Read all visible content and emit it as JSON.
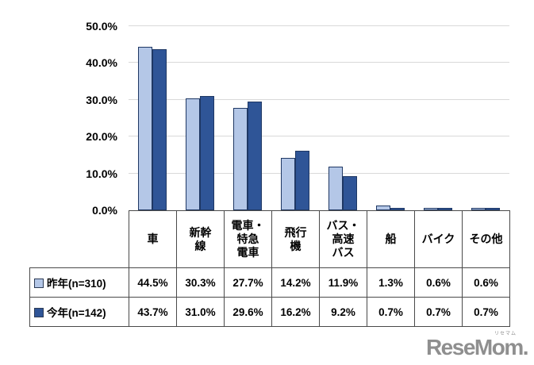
{
  "chart_data": {
    "type": "bar",
    "title": "",
    "xlabel": "",
    "ylabel": "",
    "ylim": [
      0,
      50
    ],
    "ytick_step": 10,
    "ytick_labels": [
      "0.0%",
      "10.0%",
      "20.0%",
      "30.0%",
      "40.0%",
      "50.0%"
    ],
    "grid": true,
    "legend_position": "table-left",
    "gridline_color": "#d9d9d9",
    "bar_border_color": "#1F3864",
    "categories": [
      "車",
      "新幹線",
      "電車・特急電車",
      "飛行機",
      "バス・高速バス",
      "船",
      "バイク",
      "その他"
    ],
    "categories_display": [
      "車",
      "新幹\n線",
      "電車・\n特急\n電車",
      "飛行\n機",
      "バス・\n高速\nバス",
      "船",
      "バイク",
      "その他"
    ],
    "series": [
      {
        "name": "昨年(n=310)",
        "color": "#B4C7E7",
        "values": [
          44.5,
          30.3,
          27.7,
          14.2,
          11.9,
          1.3,
          0.6,
          0.6
        ],
        "display": [
          "44.5%",
          "30.3%",
          "27.7%",
          "14.2%",
          "11.9%",
          "1.3%",
          "0.6%",
          "0.6%"
        ]
      },
      {
        "name": "今年(n=142)",
        "color": "#2F5597",
        "values": [
          43.7,
          31.0,
          29.6,
          16.2,
          9.2,
          0.7,
          0.7,
          0.7
        ],
        "display": [
          "43.7%",
          "31.0%",
          "29.6%",
          "16.2%",
          "9.2%",
          "0.7%",
          "0.7%",
          "0.7%"
        ]
      }
    ]
  },
  "watermark": {
    "text": "ReseMom",
    "suffix": ".",
    "ruby": "リセマム",
    "color": "#8F8F8F"
  }
}
